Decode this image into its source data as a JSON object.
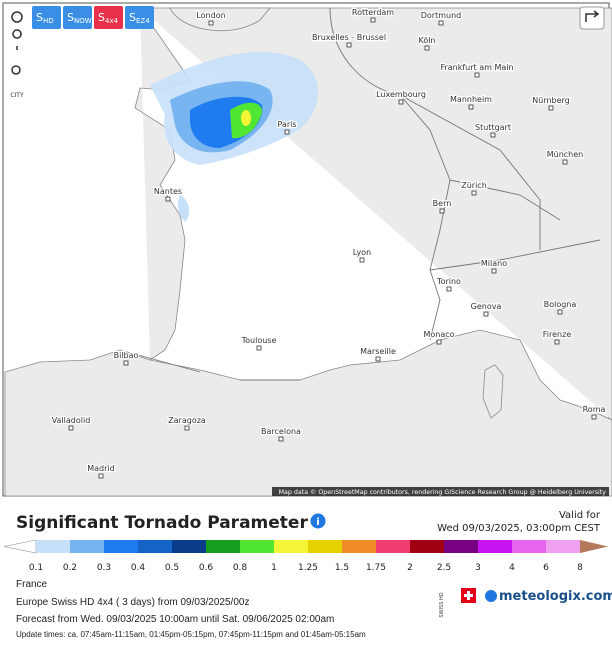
{
  "map": {
    "buttons": [
      {
        "main": "S",
        "sub": "HD"
      },
      {
        "main": "S",
        "sub": "NOW"
      },
      {
        "main": "S",
        "sub": "4x4"
      },
      {
        "main": "S",
        "sub": "EZ4"
      }
    ],
    "city_button": "CITY",
    "cities": [
      "London",
      "Rotterdam",
      "Dortmund",
      "Bruxelles - Brussel",
      "Köln",
      "Frankfurt am Main",
      "Luxembourg",
      "Mannheim",
      "Nürnberg",
      "Stuttgart",
      "Paris",
      "München",
      "Nantes",
      "Zürich",
      "Bern",
      "Lyon",
      "Milano",
      "Torino",
      "Bologna",
      "Genova",
      "Firenze",
      "Monaco",
      "Toulouse",
      "Marseille",
      "Bilbao",
      "Roma",
      "Valladolid",
      "Zaragoza",
      "Barcelona",
      "Madrid"
    ],
    "attribution": "Map data © OpenStreetMap contributors, rendering GIScience Research Group @ Heidelberg University"
  },
  "legend": {
    "title": "Significant Tornado Parameter",
    "valid_label": "Valid for",
    "valid_time": "Wed 09/03/2025, 03:00pm CEST",
    "ticks": [
      0.1,
      0.2,
      0.3,
      0.4,
      0.5,
      0.6,
      0.8,
      1,
      1.25,
      1.5,
      1.75,
      2,
      2.5,
      3,
      4,
      6,
      8
    ],
    "colors": [
      "#c6e0fa",
      "#78b4f0",
      "#1e7cf0",
      "#1464c8",
      "#0a3c8c",
      "#14a01e",
      "#50e632",
      "#f5f537",
      "#e6d200",
      "#f08c28",
      "#f03c6e",
      "#a00014",
      "#780082",
      "#c814f0",
      "#e664f0",
      "#f0a0f0"
    ],
    "under_color": "#ffffff",
    "over_color": "#b4785a"
  },
  "info": {
    "region": "France",
    "model": "Europe Swiss HD 4x4 ( 3 days)  from 09/03/2025/00z",
    "forecast": "Forecast from Wed. 09/03/2025 10:00am until Sat. 09/06/2025 02:00am",
    "update": "Update times: ca. 07:45am-11:15am, 01:45pm-05:15pm, 07:45pm-11:15pm and 01:45am-05:15am"
  },
  "brand": {
    "swiss": "SWISS HD",
    "name": "meteologix.com"
  }
}
